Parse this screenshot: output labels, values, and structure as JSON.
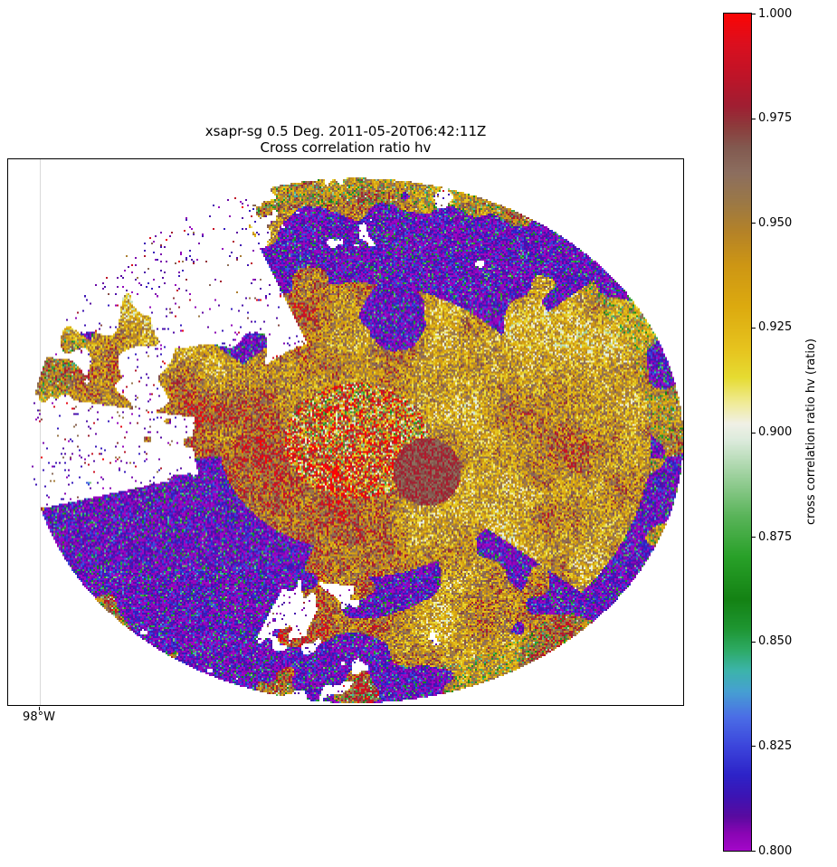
{
  "figure": {
    "title_line1": "xsapr-sg 0.5 Deg. 2011-05-20T06:42:11Z",
    "title_line2": "Cross correlation ratio hv",
    "x_tick_label": "98°W",
    "background": "#ffffff"
  },
  "colorbar": {
    "label": "cross correlation ratio hv (ratio)",
    "vmin": 0.8,
    "vmax": 1.0,
    "ticks": [
      "1.000",
      "0.975",
      "0.950",
      "0.925",
      "0.900",
      "0.875",
      "0.850",
      "0.825",
      "0.800"
    ],
    "tick_values": [
      1.0,
      0.975,
      0.95,
      0.925,
      0.9,
      0.875,
      0.85,
      0.825,
      0.8
    ],
    "colormap_stops": [
      {
        "v": 0.8,
        "c": "#a307c8"
      },
      {
        "v": 0.804,
        "c": "#8a05b4"
      },
      {
        "v": 0.808,
        "c": "#5a0aa0"
      },
      {
        "v": 0.813,
        "c": "#3c14b4"
      },
      {
        "v": 0.818,
        "c": "#2d23c8"
      },
      {
        "v": 0.825,
        "c": "#3c46dc"
      },
      {
        "v": 0.832,
        "c": "#4b6ee6"
      },
      {
        "v": 0.838,
        "c": "#46a0d2"
      },
      {
        "v": 0.843,
        "c": "#3cb4aa"
      },
      {
        "v": 0.848,
        "c": "#2daa64"
      },
      {
        "v": 0.853,
        "c": "#1e9632"
      },
      {
        "v": 0.86,
        "c": "#148214"
      },
      {
        "v": 0.87,
        "c": "#28a028"
      },
      {
        "v": 0.88,
        "c": "#5ab45a"
      },
      {
        "v": 0.89,
        "c": "#a0d2a0"
      },
      {
        "v": 0.898,
        "c": "#dcebdc"
      },
      {
        "v": 0.902,
        "c": "#f0f0e6"
      },
      {
        "v": 0.907,
        "c": "#f0eb96"
      },
      {
        "v": 0.913,
        "c": "#e6dc32"
      },
      {
        "v": 0.92,
        "c": "#e6c31e"
      },
      {
        "v": 0.93,
        "c": "#dcaa0f"
      },
      {
        "v": 0.94,
        "c": "#cd9614"
      },
      {
        "v": 0.948,
        "c": "#b48228"
      },
      {
        "v": 0.955,
        "c": "#9b7846"
      },
      {
        "v": 0.962,
        "c": "#8c6e5f"
      },
      {
        "v": 0.968,
        "c": "#825a50"
      },
      {
        "v": 0.973,
        "c": "#8c3c3c"
      },
      {
        "v": 0.978,
        "c": "#a01e32"
      },
      {
        "v": 0.985,
        "c": "#be1428"
      },
      {
        "v": 0.993,
        "c": "#dc0f1e"
      },
      {
        "v": 1.0,
        "c": "#fa0505"
      }
    ]
  },
  "chart_data": {
    "type": "heatmap",
    "chart_kind": "radar_ppi_scan",
    "title": "xsapr-sg 0.5 Deg. 2011-05-20T06:42:11Z",
    "subtitle": "Cross correlation ratio hv",
    "field": "cross correlation ratio hv",
    "units": "ratio",
    "colorbar_label": "cross correlation ratio hv (ratio)",
    "value_range": [
      0.8,
      1.0
    ],
    "colorbar_ticks": [
      1.0,
      0.975,
      0.95,
      0.925,
      0.9,
      0.875,
      0.85,
      0.825,
      0.8
    ],
    "x_tick_labels": [
      "98°W"
    ],
    "grid": "single vertical longitude gridline at 98°W near left edge",
    "legend_position": "right colorbar",
    "notes": "Near-circular PPI disk of speckled data dominated by values 0.93-0.98 (gold/brown/dark-red). Low-value patches 0.80-0.83 (purple) along the north rim, a swirl north of center, the southwest wedge and southern streaks, with green/teal fringe speckles at their boundaries. White no-data gaps in the northwest sector, along the west edge (sparse purple speckles) and in southern streaks."
  }
}
